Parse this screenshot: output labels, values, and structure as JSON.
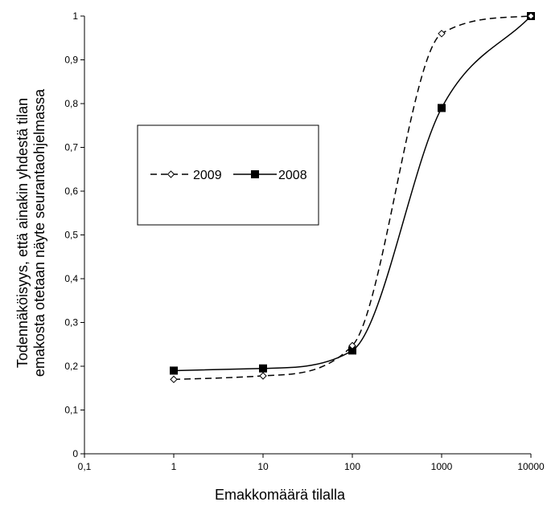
{
  "chart_data": {
    "type": "line",
    "title": "",
    "xlabel": "Emakkomäärä tilalla",
    "ylabel_lines": [
      "Todennäköisyys, että ainakin yhdestä tilan",
      "emakosta otetaan näyte seurantaohjelmassa"
    ],
    "x_scale": "log",
    "xlim": [
      0.1,
      10000
    ],
    "ylim": [
      0,
      1
    ],
    "x_ticks": [
      0.1,
      1,
      10,
      100,
      1000,
      10000
    ],
    "x_tick_labels": [
      "0,1",
      "1",
      "10",
      "100",
      "1000",
      "10000"
    ],
    "y_ticks": [
      0,
      0.1,
      0.2,
      0.3,
      0.4,
      0.5,
      0.6,
      0.7,
      0.8,
      0.9,
      1
    ],
    "y_tick_labels": [
      "0",
      "0,1",
      "0,2",
      "0,3",
      "0,4",
      "0,5",
      "0,6",
      "0,7",
      "0,8",
      "0,9",
      "1"
    ],
    "grid": false,
    "legend_position": "left-middle",
    "series": [
      {
        "name": "2009",
        "style": "dashed",
        "marker": "open-diamond",
        "color": "#000000",
        "x": [
          1,
          10,
          100,
          1000,
          10000
        ],
        "y": [
          0.17,
          0.178,
          0.247,
          0.96,
          1.0
        ]
      },
      {
        "name": "2008",
        "style": "solid",
        "marker": "filled-square",
        "color": "#000000",
        "x": [
          1,
          10,
          100,
          1000,
          10000
        ],
        "y": [
          0.19,
          0.195,
          0.236,
          0.79,
          1.0
        ]
      }
    ]
  }
}
